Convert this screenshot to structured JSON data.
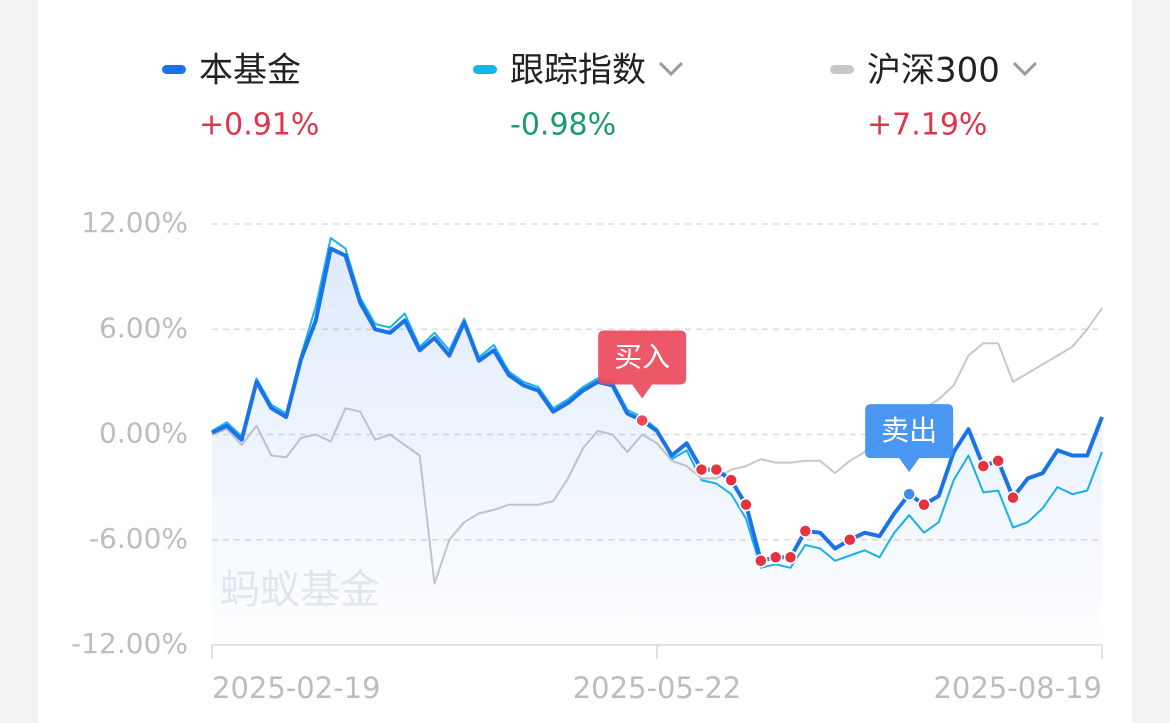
{
  "chart_data": {
    "type": "line",
    "watermark": "蚂蚁基金",
    "categories": [
      "2025-02-19",
      null,
      null,
      null,
      null,
      null,
      null,
      null,
      null,
      null,
      null,
      null,
      null,
      null,
      null,
      null,
      null,
      null,
      null,
      null,
      null,
      null,
      null,
      null,
      null,
      null,
      null,
      null,
      null,
      null,
      "2025-05-22",
      null,
      null,
      null,
      null,
      null,
      null,
      null,
      null,
      null,
      null,
      null,
      null,
      null,
      null,
      null,
      null,
      null,
      null,
      null,
      null,
      null,
      null,
      null,
      null,
      null,
      null,
      null,
      null,
      null,
      "2025-08-19"
    ],
    "series": [
      {
        "name": "跟踪指数",
        "summary": "-0.98%",
        "color": "#19b5e6",
        "dropdown": true,
        "values": [
          0.2,
          0.7,
          -0.1,
          3.2,
          1.7,
          1.2,
          4.5,
          7.3,
          11.2,
          10.6,
          7.8,
          6.3,
          6.1,
          6.9,
          5.0,
          5.8,
          4.8,
          6.6,
          4.4,
          5.1,
          3.6,
          3.0,
          2.7,
          1.5,
          2.0,
          2.7,
          3.2,
          3.0,
          1.4,
          1.0,
          0.3,
          -1.4,
          -0.9,
          -2.6,
          -2.8,
          -3.4,
          -4.8,
          -7.6,
          -7.4,
          -7.6,
          -6.3,
          -6.5,
          -7.2,
          -6.9,
          -6.6,
          -7.0,
          -5.6,
          -4.6,
          -5.6,
          -5.0,
          -2.6,
          -1.2,
          -3.3,
          -3.2,
          -5.3,
          -5.0,
          -4.2,
          -3.0,
          -3.4,
          -3.2,
          -1.0
        ]
      },
      {
        "name": "沪深300",
        "summary": "+7.19%",
        "color": "#c8c8c8",
        "dropdown": true,
        "values": [
          0.0,
          0.3,
          -0.6,
          0.5,
          -1.2,
          -1.3,
          -0.2,
          0.0,
          -0.4,
          1.5,
          1.3,
          -0.3,
          0.0,
          -0.6,
          -1.2,
          -8.5,
          -6.0,
          -5.0,
          -4.5,
          -4.3,
          -4.0,
          -4.0,
          -4.0,
          -3.8,
          -2.5,
          -0.8,
          0.2,
          0.0,
          -1.0,
          0.0,
          -0.5,
          -1.5,
          -1.8,
          -2.5,
          -2.5,
          -2.0,
          -1.8,
          -1.4,
          -1.6,
          -1.6,
          -1.5,
          -1.5,
          -2.2,
          -1.5,
          -1.0,
          -0.4,
          1.0,
          1.3,
          1.5,
          2.0,
          2.8,
          4.5,
          5.2,
          5.2,
          3.0,
          3.5,
          4.0,
          4.5,
          5.0,
          6.0,
          7.2
        ]
      },
      {
        "name": "本基金",
        "summary": "+0.91%",
        "color": "#1a73e8",
        "values": [
          0.1,
          0.5,
          -0.3,
          3.0,
          1.5,
          1.0,
          4.3,
          6.5,
          10.6,
          10.2,
          7.5,
          6.0,
          5.8,
          6.5,
          4.8,
          5.5,
          4.5,
          6.4,
          4.2,
          4.8,
          3.4,
          2.8,
          2.5,
          1.3,
          1.8,
          2.5,
          3.0,
          2.8,
          1.2,
          0.8,
          0.2,
          -1.2,
          -0.5,
          -2.0,
          -2.0,
          -2.6,
          -4.0,
          -7.2,
          -7.0,
          -7.0,
          -5.5,
          -5.6,
          -6.5,
          -6.0,
          -5.6,
          -5.8,
          -4.5,
          -3.4,
          -4.0,
          -3.5,
          -1.0,
          0.3,
          -1.8,
          -1.5,
          -3.6,
          -2.5,
          -2.2,
          -0.9,
          -1.2,
          -1.2,
          1.0
        ]
      }
    ],
    "buy_marks": [
      29,
      33,
      34,
      35,
      36,
      37,
      38,
      39,
      40,
      43,
      48,
      52,
      53,
      54
    ],
    "annotations": [
      {
        "label": "买入",
        "index": 29,
        "color": "#ec4a5c"
      },
      {
        "label": "卖出",
        "index": 47,
        "color": "#3b8ef0"
      }
    ],
    "ylim": [
      -12,
      12
    ],
    "yticks": [
      {
        "value": -12,
        "label": "-12.00%"
      },
      {
        "value": -6,
        "label": "-6.00%"
      },
      {
        "value": 0,
        "label": "0.00%"
      },
      {
        "value": 6,
        "label": "6.00%"
      },
      {
        "value": 12,
        "label": "12.00%"
      }
    ],
    "grid": true
  }
}
